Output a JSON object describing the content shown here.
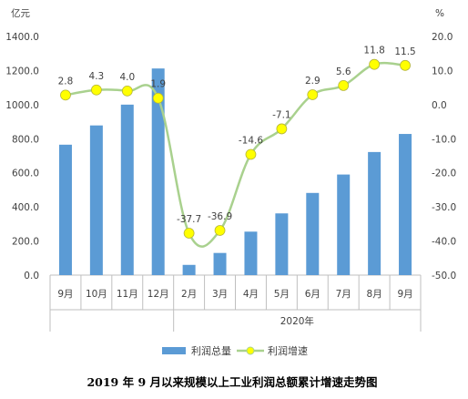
{
  "chart_data": {
    "type": "bar+line",
    "title": "2019 年 9 月以来规模以上工业利润总额累计增速走势图",
    "categories": [
      "9月",
      "10月",
      "11月",
      "12月",
      "2月",
      "3月",
      "4月",
      "5月",
      "6月",
      "7月",
      "8月",
      "9月"
    ],
    "year_group_label": "2020年",
    "year_group_start_index": 4,
    "left_axis": {
      "unit": "亿元",
      "min": 0,
      "max": 1400,
      "step": 200,
      "ticks": [
        "0.0",
        "200.0",
        "400.0",
        "600.0",
        "800.0",
        "1000.0",
        "1200.0",
        "1400.0"
      ]
    },
    "right_axis": {
      "unit": "%",
      "min": -50,
      "max": 20,
      "step": 10,
      "ticks": [
        "-50.0",
        "-40.0",
        "-30.0",
        "-20.0",
        "-10.0",
        "0.0",
        "10.0",
        "20.0"
      ]
    },
    "series": [
      {
        "name": "利润总量",
        "type": "bar",
        "axis": "left",
        "color": "#5B9BD5",
        "values": [
          765,
          878,
          1000,
          1212,
          60,
          130,
          255,
          362,
          482,
          590,
          722,
          828
        ]
      },
      {
        "name": "利润增速",
        "type": "line",
        "axis": "right",
        "color": "#A9D18E",
        "marker_color": "#FFFF00",
        "values": [
          2.8,
          4.3,
          4.0,
          1.9,
          -37.7,
          -36.9,
          -14.6,
          -7.1,
          2.9,
          5.6,
          11.8,
          11.5
        ],
        "labels": [
          "2.8",
          "4.3",
          "4.0",
          "1.9",
          "-37.7",
          "-36.9",
          "-14.6",
          "-7.1",
          "2.9",
          "5.6",
          "11.8",
          "11.5"
        ]
      }
    ],
    "legend_position": "bottom",
    "grid": false
  }
}
